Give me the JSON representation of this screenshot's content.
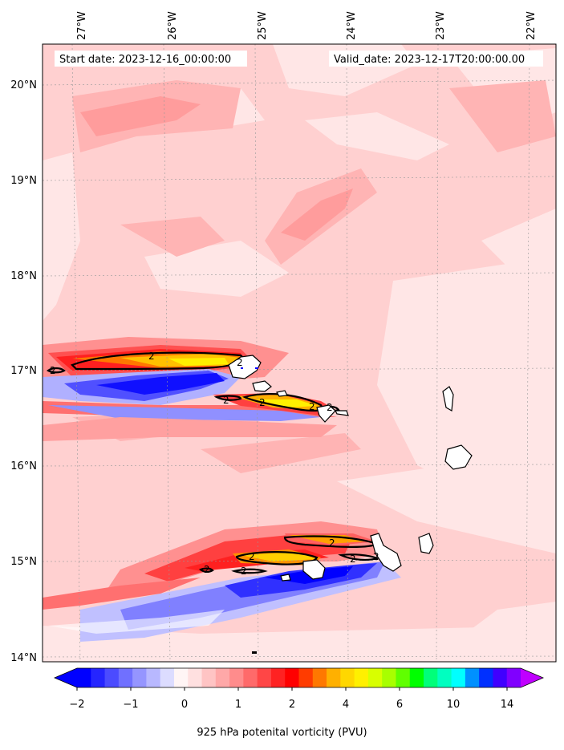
{
  "map": {
    "start_date_text": "Start date: 2023-12-16_00:00:00",
    "valid_date_text": "Valid_date: 2023-12-17T20:00:00.00",
    "lon_labels": [
      "27°W",
      "26°W",
      "25°W",
      "24°W",
      "23°W",
      "22°W"
    ],
    "lat_labels": [
      "20°N",
      "19°N",
      "18°N",
      "17°N",
      "16°N",
      "15°N",
      "14°N"
    ],
    "contour_labels": [
      "2",
      "2",
      "2",
      "2",
      "2",
      "2",
      "2",
      "2",
      "2",
      "2",
      "2",
      "2",
      "2",
      "2",
      "2",
      "2"
    ],
    "field": "925 hPa potential vorticity",
    "contour_level_pvu": 2
  },
  "colorbar": {
    "title": "925 hPa potenital vorticity (PVU)",
    "tick_labels": [
      "−2",
      "−1",
      "0",
      "1",
      "2",
      "4",
      "6",
      "10",
      "14"
    ],
    "colors": [
      "#0000ff",
      "#2525ff",
      "#4b4bff",
      "#7070ff",
      "#9595ff",
      "#b8b8ff",
      "#dcdcff",
      "#fff5f5",
      "#ffe0e0",
      "#ffc4c4",
      "#ffa8a8",
      "#ff8c8c",
      "#ff6a6a",
      "#ff4646",
      "#ff2222",
      "#ff0000",
      "#ff3c00",
      "#ff7800",
      "#ffb000",
      "#ffd700",
      "#fff000",
      "#d8ff00",
      "#a8ff00",
      "#60ff00",
      "#00ff00",
      "#00ff7a",
      "#00ffc0",
      "#00ffff",
      "#0090ff",
      "#0030ff",
      "#4000ff",
      "#8000ff"
    ],
    "under_color": "#0000ff",
    "over_color": "#c000ff"
  }
}
